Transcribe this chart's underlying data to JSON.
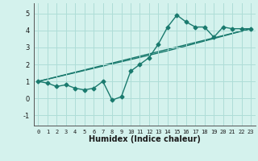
{
  "xlabel": "Humidex (Indice chaleur)",
  "bg_color": "#d4f2ed",
  "grid_color": "#aeddd7",
  "line_color": "#1a7a6e",
  "xlim": [
    -0.5,
    23.5
  ],
  "ylim": [
    -1.6,
    5.6
  ],
  "xticks": [
    0,
    1,
    2,
    3,
    4,
    5,
    6,
    7,
    8,
    9,
    10,
    11,
    12,
    13,
    14,
    15,
    16,
    17,
    18,
    19,
    20,
    21,
    22,
    23
  ],
  "yticks": [
    -1,
    0,
    1,
    2,
    3,
    4,
    5
  ],
  "series1_x": [
    0,
    1,
    2,
    3,
    4,
    5,
    6,
    7,
    8,
    9,
    10,
    11,
    12,
    13,
    14,
    15,
    16,
    17,
    18,
    19,
    20,
    21,
    22,
    23
  ],
  "series1_y": [
    1.0,
    0.9,
    0.7,
    0.8,
    0.6,
    0.5,
    0.6,
    1.0,
    -0.1,
    0.1,
    1.6,
    2.0,
    2.4,
    3.2,
    4.2,
    4.9,
    4.5,
    4.2,
    4.2,
    3.6,
    4.2,
    4.1,
    4.1,
    4.1
  ],
  "series2_x": [
    0,
    23
  ],
  "series2_y": [
    1.0,
    4.1
  ],
  "series3_x": [
    0,
    14,
    23
  ],
  "series3_y": [
    1.0,
    2.8,
    4.1
  ],
  "marker_size": 2.5,
  "line_width": 1.0,
  "xlabel_fontsize": 7,
  "tick_fontsize": 5
}
